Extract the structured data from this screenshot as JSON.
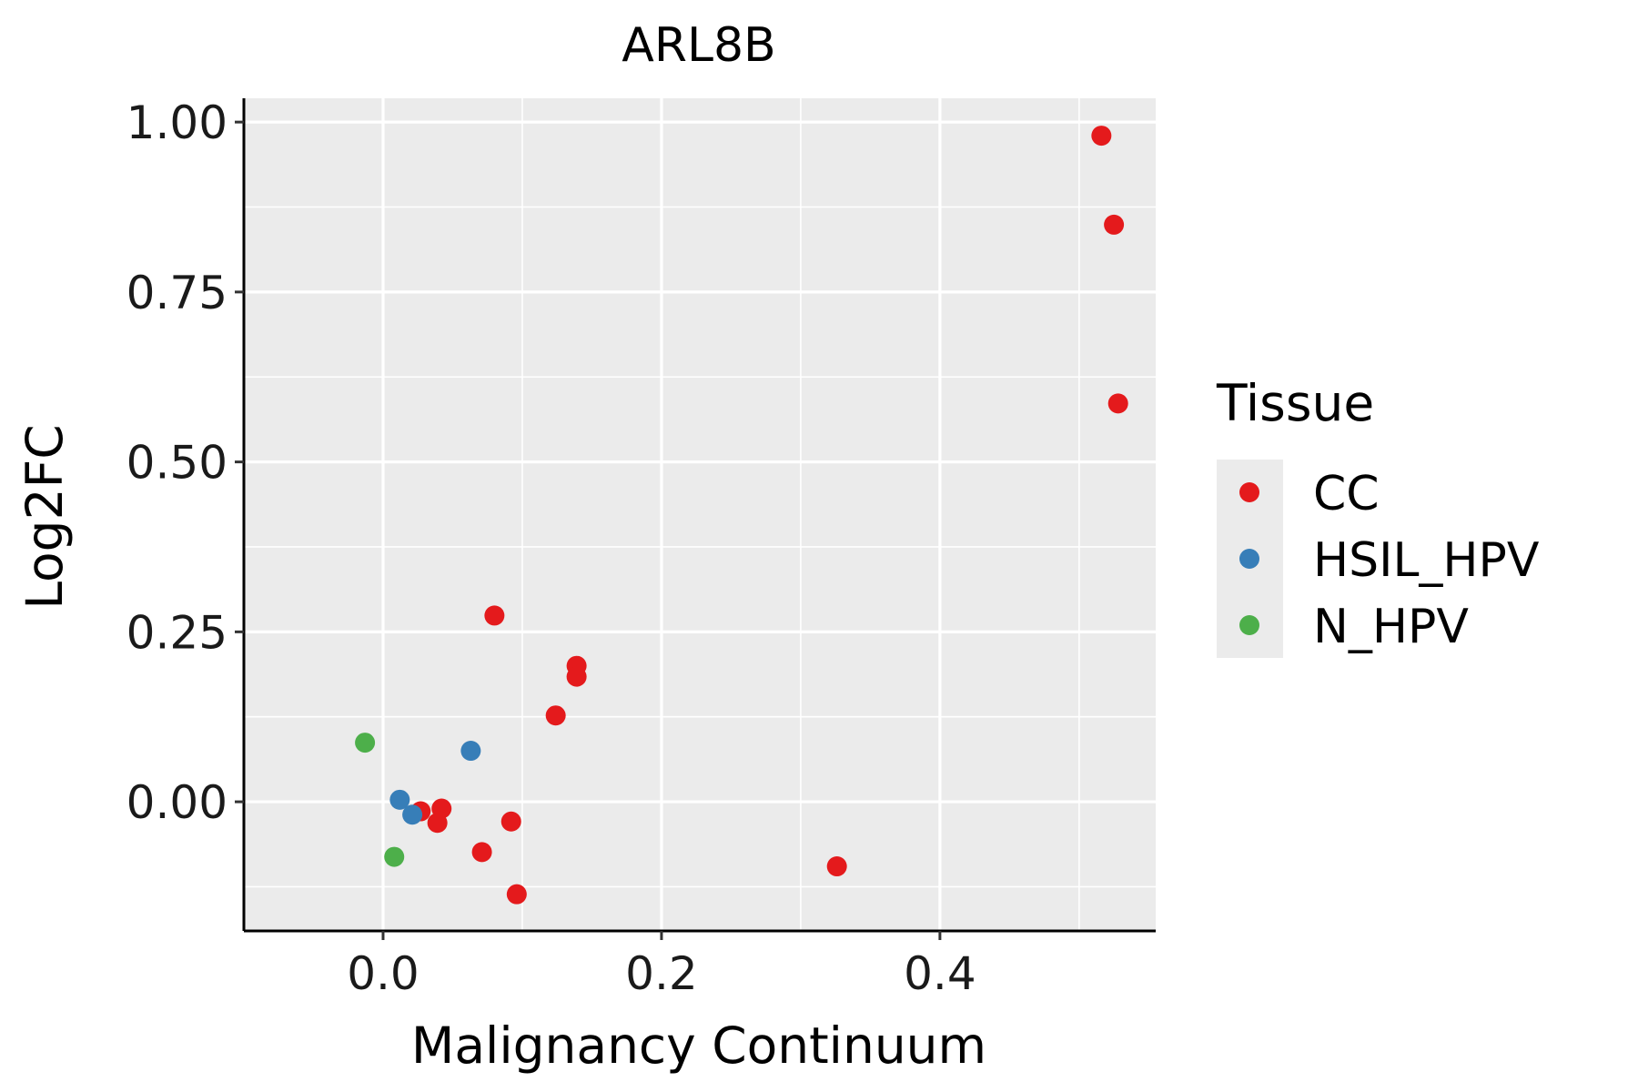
{
  "chart_data": {
    "type": "scatter",
    "title": "ARL8B",
    "xlabel": "Malignancy Continuum",
    "ylabel": "Log2FC",
    "xlim": [
      -0.1,
      0.555
    ],
    "ylim": [
      -0.19,
      1.035
    ],
    "x_ticks": [
      0.0,
      0.2,
      0.4
    ],
    "x_tick_labels": [
      "0.0",
      "0.2",
      "0.4"
    ],
    "y_ticks": [
      0.0,
      0.25,
      0.5,
      0.75,
      1.0
    ],
    "y_tick_labels": [
      "0.00",
      "0.25",
      "0.50",
      "0.75",
      "1.00"
    ],
    "grid": true,
    "legend": {
      "title": "Tissue",
      "placement": "right",
      "entries": [
        {
          "label": "CC",
          "color": "#E41A1C"
        },
        {
          "label": "HSIL_HPV",
          "color": "#377EB8"
        },
        {
          "label": "N_HPV",
          "color": "#4DAF4A"
        }
      ]
    },
    "series": [
      {
        "name": "CC",
        "color": "#E41A1C",
        "points": [
          {
            "x": 0.516,
            "y": 0.98
          },
          {
            "x": 0.525,
            "y": 0.849
          },
          {
            "x": 0.528,
            "y": 0.586
          },
          {
            "x": 0.08,
            "y": 0.274
          },
          {
            "x": 0.139,
            "y": 0.2
          },
          {
            "x": 0.139,
            "y": 0.184
          },
          {
            "x": 0.124,
            "y": 0.127
          },
          {
            "x": 0.027,
            "y": -0.014
          },
          {
            "x": 0.042,
            "y": -0.01
          },
          {
            "x": 0.039,
            "y": -0.031
          },
          {
            "x": 0.092,
            "y": -0.029
          },
          {
            "x": 0.071,
            "y": -0.074
          },
          {
            "x": 0.096,
            "y": -0.136
          },
          {
            "x": 0.326,
            "y": -0.095
          }
        ]
      },
      {
        "name": "HSIL_HPV",
        "color": "#377EB8",
        "points": [
          {
            "x": 0.063,
            "y": 0.075
          },
          {
            "x": 0.012,
            "y": 0.003
          },
          {
            "x": 0.021,
            "y": -0.019
          }
        ]
      },
      {
        "name": "N_HPV",
        "color": "#4DAF4A",
        "points": [
          {
            "x": -0.013,
            "y": 0.087
          },
          {
            "x": 0.008,
            "y": -0.081
          }
        ]
      }
    ]
  }
}
